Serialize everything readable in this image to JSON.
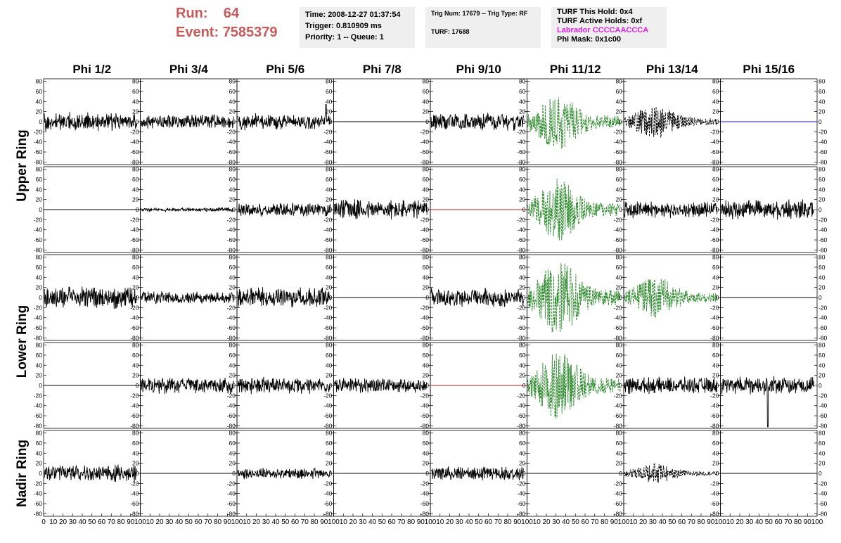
{
  "header": {
    "run_label": "Run:",
    "run_value": "64",
    "event_label": "Event:",
    "event_value": "7585379"
  },
  "info_time": {
    "time": "Time: 2008-12-27 01:37:54",
    "trigger": "Trigger: 0.810909 ms",
    "priority": "Priority: 1 -- Queue: 1"
  },
  "info_trig": {
    "trig": "Trig Num: 17679 -- Trig Type: RF",
    "turf": "TURF: 17688"
  },
  "info_turf": {
    "hold": "TURF This Hold: 0x4",
    "active": "TURF Active Holds: 0xf",
    "labrador": "Labrador CCCCAACCCA",
    "phimask": "Phi Mask: 0x1c00"
  },
  "colors": {
    "run_text": "#c75a5a",
    "labrador_text": "#e020e0",
    "trace_black": "#000000",
    "trace_green": "#2e8b2e",
    "trace_red": "#b22222",
    "trace_blue": "#1a1aa0",
    "info_bg": "#efefef"
  },
  "chart_data": {
    "type": "line",
    "columns": [
      "Phi 1/2",
      "Phi 3/4",
      "Phi 5/6",
      "Phi 7/8",
      "Phi 9/10",
      "Phi 11/12",
      "Phi 13/14",
      "Phi 15/16"
    ],
    "ring_labels": [
      {
        "text": "Upper Ring",
        "rows": [
          0,
          1
        ]
      },
      {
        "text": "Lower Ring",
        "rows": [
          2,
          3
        ]
      },
      {
        "text": "Nadir Ring",
        "rows": [
          4
        ]
      }
    ],
    "ylim": [
      -85,
      85
    ],
    "y_ticks": [
      "80",
      "60",
      "40",
      "20",
      "0",
      "-20",
      "-40",
      "-60",
      "-80"
    ],
    "xlim": [
      0,
      100
    ],
    "x_tick_first": "0",
    "x_tick_labels": [
      "10",
      "20",
      "30",
      "40",
      "50",
      "60",
      "70",
      "80",
      "90",
      "100"
    ],
    "panels": [
      [
        {
          "style": "noise",
          "color": "black",
          "amp": 20,
          "seed": 11
        },
        {
          "style": "noise",
          "color": "black",
          "amp": 16,
          "seed": 12
        },
        {
          "style": "noise",
          "color": "black",
          "amp": 18,
          "seed": 13,
          "spike": 34
        },
        {
          "style": "flat",
          "color": "black"
        },
        {
          "style": "noise",
          "color": "black",
          "amp": 20,
          "seed": 15
        },
        {
          "style": "pulse",
          "color": "green",
          "amp": 55,
          "seed": 16
        },
        {
          "style": "pulse",
          "color": "black",
          "amp": 32,
          "seed": 17
        },
        {
          "style": "flat",
          "color": "blue"
        }
      ],
      [
        {
          "style": "flat",
          "color": "black"
        },
        {
          "style": "noise",
          "color": "black",
          "amp": 4,
          "seed": 22
        },
        {
          "style": "noise",
          "color": "black",
          "amp": 15,
          "seed": 23
        },
        {
          "style": "noise",
          "color": "black",
          "amp": 22,
          "seed": 24
        },
        {
          "style": "flat",
          "color": "red"
        },
        {
          "style": "pulse",
          "color": "green",
          "amp": 58,
          "seed": 26
        },
        {
          "style": "noise",
          "color": "black",
          "amp": 18,
          "seed": 27
        },
        {
          "style": "noise",
          "color": "black",
          "amp": 22,
          "seed": 28
        }
      ],
      [
        {
          "style": "noise",
          "color": "black",
          "amp": 24,
          "seed": 31
        },
        {
          "style": "noise",
          "color": "black",
          "amp": 14,
          "seed": 32
        },
        {
          "style": "noise",
          "color": "black",
          "amp": 22,
          "seed": 33
        },
        {
          "style": "flat",
          "color": "black"
        },
        {
          "style": "noise",
          "color": "black",
          "amp": 20,
          "seed": 35
        },
        {
          "style": "pulse",
          "color": "green",
          "amp": 70,
          "seed": 36
        },
        {
          "style": "pulse",
          "color": "green",
          "amp": 40,
          "seed": 37
        },
        {
          "style": "flat",
          "color": "black"
        }
      ],
      [
        {
          "style": "flat",
          "color": "black"
        },
        {
          "style": "noise",
          "color": "black",
          "amp": 18,
          "seed": 42
        },
        {
          "style": "noise",
          "color": "black",
          "amp": 18,
          "seed": 43
        },
        {
          "style": "noise",
          "color": "black",
          "amp": 16,
          "seed": 44
        },
        {
          "style": "flat",
          "color": "red"
        },
        {
          "style": "pulse",
          "color": "green",
          "amp": 65,
          "seed": 46
        },
        {
          "style": "noise",
          "color": "black",
          "amp": 18,
          "seed": 47
        },
        {
          "style": "noise",
          "color": "black",
          "amp": 20,
          "seed": 48,
          "dip": -82
        }
      ],
      [
        {
          "style": "noise",
          "color": "black",
          "amp": 18,
          "seed": 51
        },
        {
          "style": "flat",
          "color": "black"
        },
        {
          "style": "noise",
          "color": "black",
          "amp": 12,
          "seed": 53
        },
        {
          "style": "flat",
          "color": "black"
        },
        {
          "style": "noise",
          "color": "black",
          "amp": 16,
          "seed": 55
        },
        {
          "style": "flat",
          "color": "black"
        },
        {
          "style": "pulse",
          "color": "black",
          "amp": 18,
          "seed": 57
        },
        {
          "style": "flat",
          "color": "black"
        }
      ]
    ]
  }
}
